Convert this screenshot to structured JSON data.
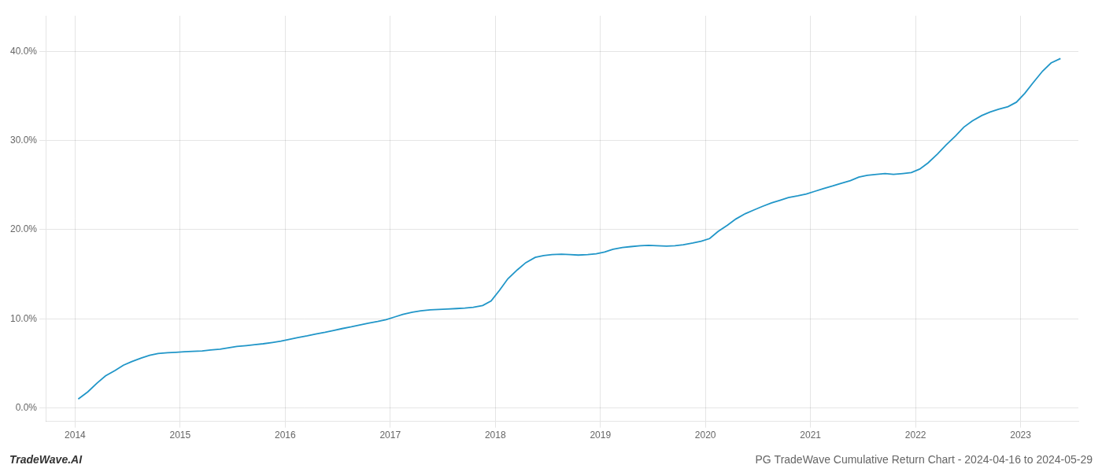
{
  "chart_data": {
    "type": "line",
    "title": "PG TradeWave Cumulative Return Chart - 2024-04-16 to 2024-05-29",
    "annotations": [
      "TradeWave.AI"
    ],
    "color": "#2196c8",
    "x": [
      2014.03,
      2014.12,
      2014.21,
      2014.29,
      2014.38,
      2014.46,
      2014.54,
      2014.63,
      2014.71,
      2014.79,
      2014.88,
      2014.96,
      2015.04,
      2015.12,
      2015.21,
      2015.29,
      2015.38,
      2015.46,
      2015.54,
      2015.63,
      2015.71,
      2015.79,
      2015.88,
      2015.96,
      2016.04,
      2016.12,
      2016.21,
      2016.29,
      2016.38,
      2016.46,
      2016.54,
      2016.63,
      2016.71,
      2016.79,
      2016.88,
      2016.96,
      2017.04,
      2017.12,
      2017.21,
      2017.29,
      2017.38,
      2017.46,
      2017.54,
      2017.63,
      2017.71,
      2017.79,
      2017.88,
      2017.96,
      2018.04,
      2018.12,
      2018.21,
      2018.29,
      2018.38,
      2018.46,
      2018.54,
      2018.63,
      2018.71,
      2018.79,
      2018.88,
      2018.96,
      2019.04,
      2019.12,
      2019.21,
      2019.29,
      2019.38,
      2019.46,
      2019.54,
      2019.63,
      2019.71,
      2019.79,
      2019.88,
      2019.96,
      2020.04,
      2020.12,
      2020.21,
      2020.29,
      2020.38,
      2020.46,
      2020.54,
      2020.63,
      2020.71,
      2020.79,
      2020.88,
      2020.96,
      2021.04,
      2021.12,
      2021.21,
      2021.29,
      2021.38,
      2021.46,
      2021.54,
      2021.63,
      2021.71,
      2021.79,
      2021.88,
      2021.96,
      2022.04,
      2022.12,
      2022.21,
      2022.29,
      2022.38,
      2022.46,
      2022.54,
      2022.63,
      2022.71,
      2022.79,
      2022.88,
      2022.96,
      2023.04,
      2023.12,
      2023.21,
      2023.29,
      2023.38
    ],
    "values": [
      1.0,
      1.8,
      2.8,
      3.6,
      4.2,
      4.8,
      5.2,
      5.6,
      5.9,
      6.1,
      6.2,
      6.25,
      6.3,
      6.35,
      6.4,
      6.5,
      6.6,
      6.75,
      6.9,
      7.0,
      7.1,
      7.2,
      7.35,
      7.5,
      7.7,
      7.9,
      8.1,
      8.3,
      8.5,
      8.7,
      8.9,
      9.1,
      9.3,
      9.5,
      9.7,
      9.9,
      10.2,
      10.5,
      10.75,
      10.9,
      11.0,
      11.05,
      11.1,
      11.15,
      11.2,
      11.3,
      11.5,
      12.0,
      13.2,
      14.5,
      15.5,
      16.3,
      16.9,
      17.1,
      17.2,
      17.25,
      17.2,
      17.15,
      17.2,
      17.3,
      17.5,
      17.8,
      18.0,
      18.1,
      18.2,
      18.25,
      18.2,
      18.15,
      18.2,
      18.3,
      18.5,
      18.7,
      19.0,
      19.8,
      20.5,
      21.2,
      21.8,
      22.2,
      22.6,
      23.0,
      23.3,
      23.6,
      23.8,
      24.0,
      24.3,
      24.6,
      24.9,
      25.2,
      25.5,
      25.9,
      26.1,
      26.2,
      26.3,
      26.2,
      26.3,
      26.4,
      26.8,
      27.5,
      28.5,
      29.5,
      30.5,
      31.5,
      32.2,
      32.8,
      33.2,
      33.5,
      33.8,
      34.3,
      35.3,
      36.5,
      37.8,
      38.7,
      39.2
    ],
    "xlim": [
      2013.72,
      2023.55
    ],
    "xticks": [
      2014,
      2015,
      2016,
      2017,
      2018,
      2019,
      2020,
      2021,
      2022,
      2023
    ],
    "ylim": [
      -1.5,
      44
    ],
    "yticks": [
      {
        "value": 0.0,
        "label": "0.0%"
      },
      {
        "value": 10.0,
        "label": "10.0%"
      },
      {
        "value": 20.0,
        "label": "20.0%"
      },
      {
        "value": 30.0,
        "label": "30.0%"
      },
      {
        "value": 40.0,
        "label": "40.0%"
      }
    ],
    "grid": true
  }
}
